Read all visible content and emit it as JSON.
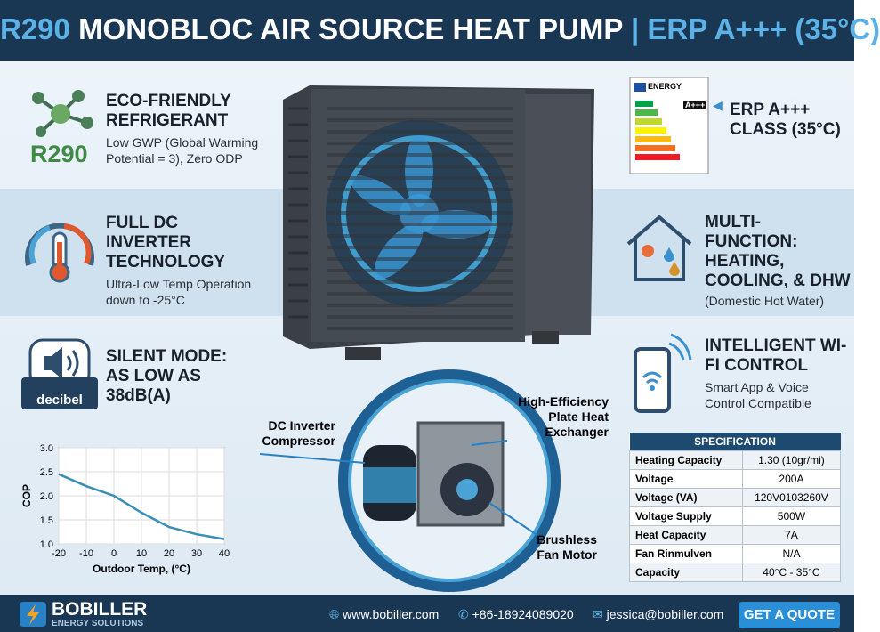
{
  "header": {
    "title_prefix": "R290",
    "title_main": "MONOBLOC AIR SOURCE HEAT PUMP",
    "title_suffix": "| ERP A+++ (35°C)"
  },
  "left_features": [
    {
      "icon_label": "R290",
      "title": "ECO-FRIENDLY REFRIGERANT",
      "description": "Low GWP (Global Warming Potential = 3), Zero ODP"
    },
    {
      "title": "FULL DC INVERTER TECHNOLOGY",
      "description": "Ultra-Low Temp Operation down to -25°C"
    },
    {
      "icon_label": "decibel",
      "title": "SILENT MODE: AS LOW AS 38dB(A)"
    }
  ],
  "right_features": [
    {
      "label_heading": "ENERGY",
      "label_class": "A+++",
      "title": "ERP A+++ CLASS (35°C)"
    },
    {
      "title": "MULTI-FUNCTION: HEATING, COOLING, & DHW",
      "description": "(Domestic Hot Water)"
    },
    {
      "title": "INTELLIGENT WI-FI CONTROL",
      "description": "Smart App & Voice Control Compatible"
    }
  ],
  "components": [
    "DC Inverter Compressor",
    "High-Efficiency Plate Heat Exchanger",
    "Brushless Fan Motor"
  ],
  "chart_data": {
    "type": "line",
    "x_label": "Outdoor Temp, (°C)",
    "y_label": "COP",
    "x": [
      -20,
      -10,
      0,
      10,
      20,
      30,
      40
    ],
    "values": [
      2.45,
      2.2,
      2.0,
      1.65,
      1.35,
      1.2,
      1.1
    ],
    "color": "#3a8fb7",
    "xlim": [
      -20,
      40
    ],
    "xticks": [
      -20,
      -10,
      0,
      10,
      20,
      30,
      40
    ],
    "ylim": [
      1.0,
      3.0
    ],
    "yticks": [
      {
        "value": 1.0,
        "label": "1.0"
      },
      1.5,
      {
        "value": 2.0,
        "label": "2.0"
      },
      2.5,
      {
        "value": 3.0,
        "label": "3.0"
      }
    ],
    "grid": true
  },
  "table": {
    "title": "SPECIFICATION",
    "rows": [
      [
        "Heating Capacity",
        "1.30 (10gr/mi)"
      ],
      [
        "Voltage",
        "200A"
      ],
      [
        "Voltage (VA)",
        "120V0103260V"
      ],
      [
        "Voltage Supply",
        "500W"
      ],
      [
        "Heat Capacity",
        "7A"
      ],
      [
        "Fan Rinmulven",
        "N/A"
      ],
      [
        "Capacity",
        "40°C - 35°C"
      ]
    ]
  },
  "footer": {
    "brand": "BOBILLER",
    "tagline": "ENERGY SOLUTIONS",
    "website": "www.bobiller.com",
    "phone": "+86-18924089020",
    "email": "jessica@bobiller.com",
    "button": "GET A QUOTE"
  }
}
